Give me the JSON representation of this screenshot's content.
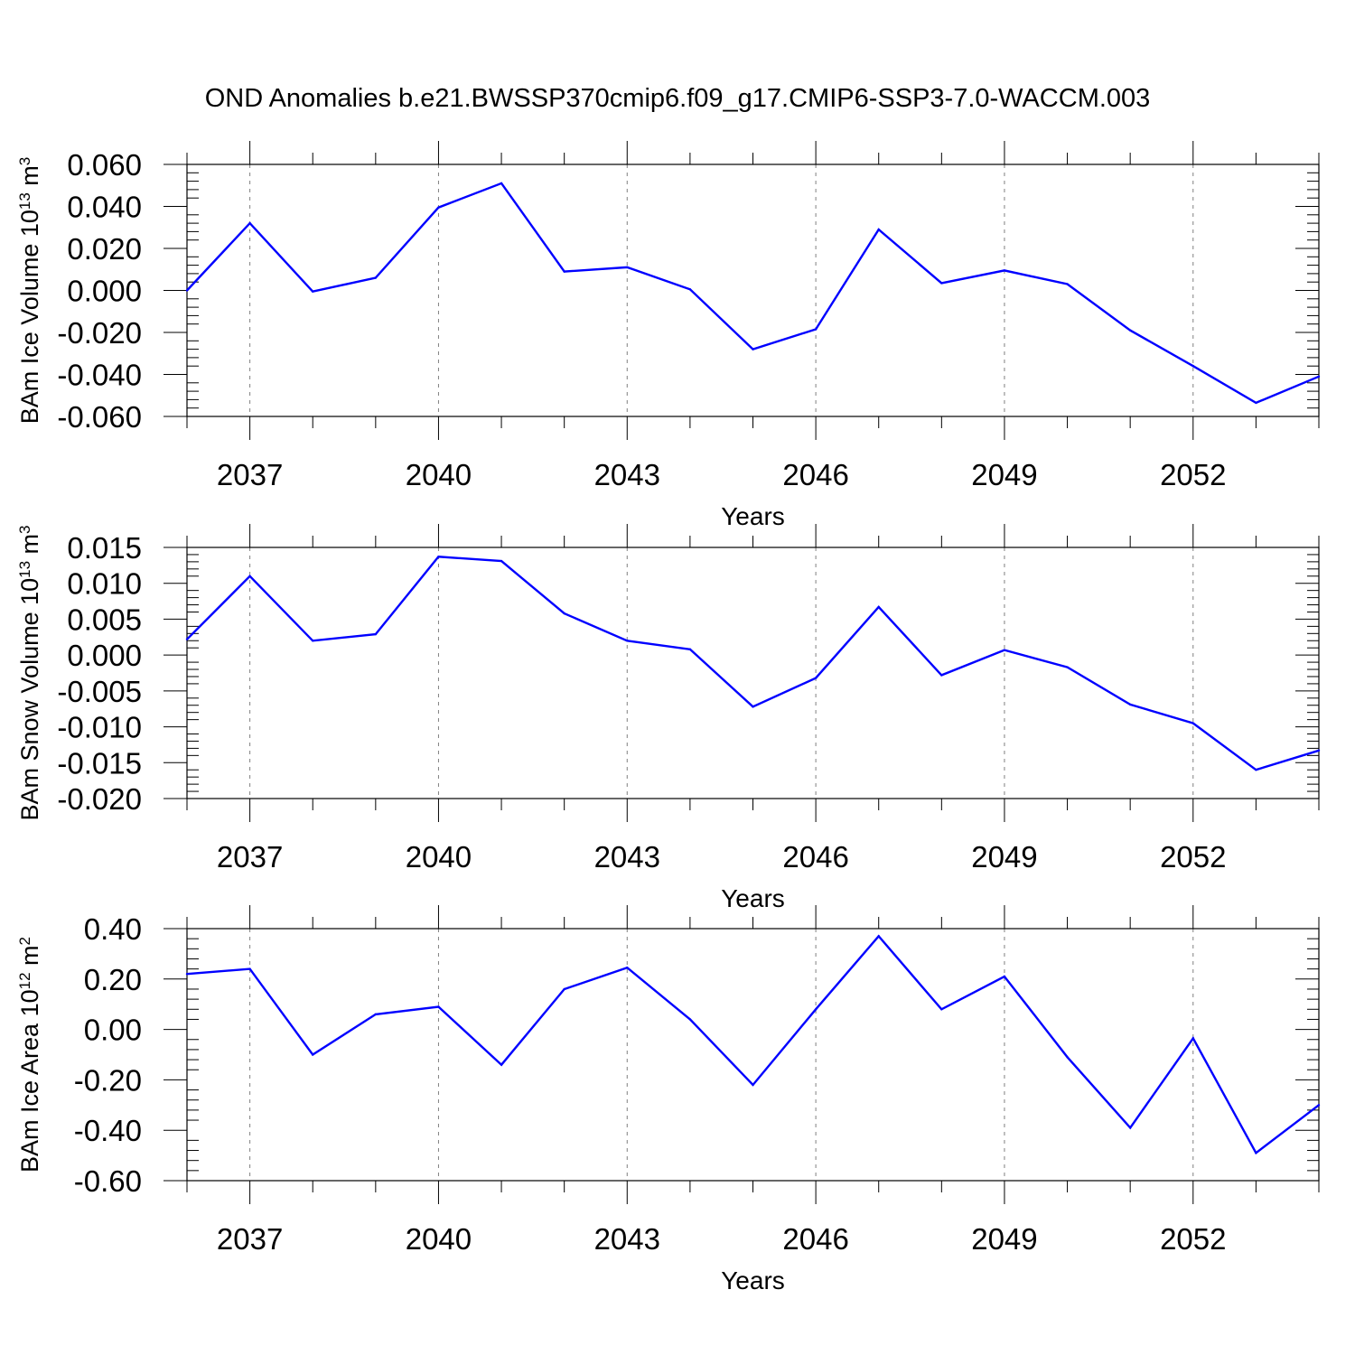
{
  "title": "OND Anomalies b.e21.BWSSP370cmip6.f09_g17.CMIP6-SSP3-7.0-WACCM.003",
  "colors": {
    "line": "#0000ff",
    "axis": "#000000",
    "grid": "#808080",
    "background": "#ffffff"
  },
  "chart_data": [
    {
      "type": "line",
      "ylabel_main": "BAm Ice Volume 10",
      "ylabel_exp": "13",
      "ylabel_unit": " m",
      "ylabel_unit_exp": "3",
      "xlabel": "Years",
      "xlim": [
        2036,
        2054
      ],
      "ylim": [
        -0.06,
        0.06
      ],
      "xticks": [
        "2037",
        "2040",
        "2043",
        "2046",
        "2049",
        "2052"
      ],
      "yticks": [
        "0.060",
        "0.040",
        "0.020",
        "0.000",
        "-0.020",
        "-0.040",
        "-0.060"
      ],
      "x": [
        2036,
        2037,
        2038,
        2039,
        2040,
        2041,
        2042,
        2043,
        2044,
        2045,
        2046,
        2047,
        2048,
        2049,
        2050,
        2051,
        2052,
        2053,
        2054
      ],
      "values": [
        0.0,
        0.032,
        -0.0005,
        0.006,
        0.0395,
        0.051,
        0.009,
        0.011,
        0.0005,
        -0.028,
        -0.0185,
        0.029,
        0.0035,
        0.0095,
        0.003,
        -0.019,
        -0.036,
        -0.0535,
        -0.041
      ],
      "grid": "dashed vertical lines at labeled years"
    },
    {
      "type": "line",
      "ylabel_main": "BAm Snow Volume 10",
      "ylabel_exp": "13",
      "ylabel_unit": " m",
      "ylabel_unit_exp": "3",
      "xlabel": "Years",
      "xlim": [
        2036,
        2054
      ],
      "ylim": [
        -0.02,
        0.015
      ],
      "xticks": [
        "2037",
        "2040",
        "2043",
        "2046",
        "2049",
        "2052"
      ],
      "yticks": [
        "0.015",
        "0.010",
        "0.005",
        "0.000",
        "-0.005",
        "-0.010",
        "-0.015",
        "-0.020"
      ],
      "x": [
        2036,
        2037,
        2038,
        2039,
        2040,
        2041,
        2042,
        2043,
        2044,
        2045,
        2046,
        2047,
        2048,
        2049,
        2050,
        2051,
        2052,
        2053,
        2054
      ],
      "values": [
        0.0022,
        0.011,
        0.002,
        0.0029,
        0.0137,
        0.0131,
        0.0058,
        0.002,
        0.0008,
        -0.0072,
        -0.0032,
        0.0067,
        -0.0028,
        0.0007,
        -0.0017,
        -0.0069,
        -0.0095,
        -0.016,
        -0.0133
      ],
      "grid": "dashed vertical lines at labeled years"
    },
    {
      "type": "line",
      "ylabel_main": "BAm Ice Area 10",
      "ylabel_exp": "12",
      "ylabel_unit": " m",
      "ylabel_unit_exp": "2",
      "xlabel": "Years",
      "xlim": [
        2036,
        2054
      ],
      "ylim": [
        -0.6,
        0.4
      ],
      "xticks": [
        "2037",
        "2040",
        "2043",
        "2046",
        "2049",
        "2052"
      ],
      "yticks": [
        "0.40",
        "0.20",
        "0.00",
        "-0.20",
        "-0.40",
        "-0.60"
      ],
      "x": [
        2036,
        2037,
        2038,
        2039,
        2040,
        2041,
        2042,
        2043,
        2044,
        2045,
        2046,
        2047,
        2048,
        2049,
        2050,
        2051,
        2052,
        2053,
        2054
      ],
      "values": [
        0.22,
        0.24,
        -0.1,
        0.06,
        0.09,
        -0.14,
        0.16,
        0.245,
        0.04,
        -0.22,
        0.08,
        0.37,
        0.08,
        0.21,
        -0.11,
        -0.39,
        -0.035,
        -0.49,
        -0.3
      ],
      "grid": "dashed vertical lines at labeled years"
    }
  ]
}
